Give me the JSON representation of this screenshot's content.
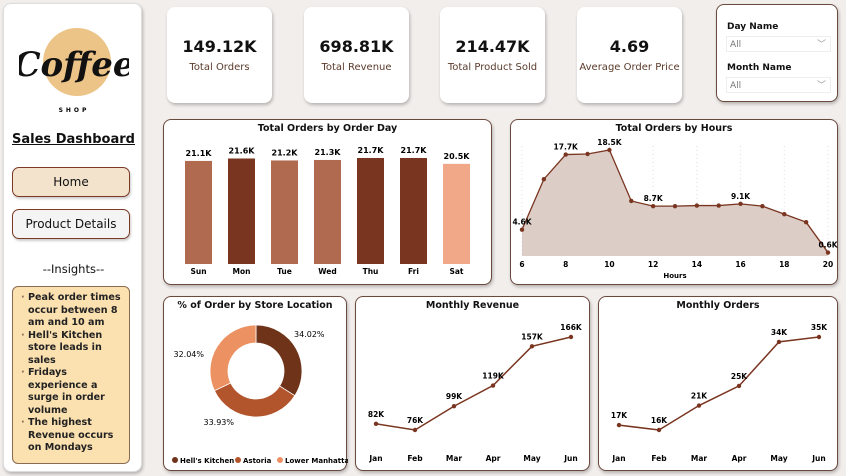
{
  "sidebar": {
    "logo_text": "Coffee",
    "logo_sub": "SHOP",
    "title": "Sales Dashboard",
    "nav": [
      {
        "label": "Home",
        "active": true
      },
      {
        "label": "Product Details",
        "active": false
      }
    ],
    "insights_title": "--Insights--",
    "insights": [
      "Peak order times occur between 8 am and 10 am",
      "Hell's Kitchen store leads in sales",
      "Fridays experience a surge in order volume",
      "The highest Revenue occurs on Mondays"
    ]
  },
  "kpis": [
    {
      "value": "149.12K",
      "label": "Total Orders"
    },
    {
      "value": "698.81K",
      "label": "Total Revenue"
    },
    {
      "value": "214.47K",
      "label": "Total Product Sold"
    },
    {
      "value": "4.69",
      "label": "Average Order Price"
    }
  ],
  "slicers": [
    {
      "label": "Day Name",
      "value": "All"
    },
    {
      "label": "Month Name",
      "value": "All"
    }
  ],
  "colors": {
    "dark": "#7a3520",
    "medium": "#b06a4f",
    "light": "#f0a888",
    "line": "#7a3520",
    "area": "#dccdc6"
  },
  "chart_data": [
    {
      "type": "bar",
      "title": "Total Orders by Order Day",
      "categories": [
        "Sun",
        "Mon",
        "Tue",
        "Wed",
        "Thu",
        "Fri",
        "Sat"
      ],
      "values": [
        21.1,
        21.6,
        21.2,
        21.3,
        21.7,
        21.7,
        20.5
      ],
      "labels": [
        "21.1K",
        "21.6K",
        "21.2K",
        "21.3K",
        "21.7K",
        "21.7K",
        "20.5K"
      ],
      "bar_colors": [
        "#b06a4f",
        "#7a3520",
        "#b06a4f",
        "#b06a4f",
        "#7a3520",
        "#7a3520",
        "#f0a888"
      ],
      "unit": "K"
    },
    {
      "type": "area",
      "title": "Total Orders by Hours",
      "xlabel": "Hours",
      "x": [
        6,
        7,
        8,
        9,
        10,
        11,
        12,
        13,
        14,
        15,
        16,
        17,
        18,
        19,
        20
      ],
      "values": [
        4.6,
        13.4,
        17.7,
        17.8,
        18.5,
        9.6,
        8.7,
        8.7,
        8.8,
        8.8,
        9.1,
        8.7,
        7.3,
        5.9,
        0.6
      ],
      "labels": {
        "6": "4.6K",
        "8": "17.7K",
        "10": "18.5K",
        "12": "8.7K",
        "16": "9.1K",
        "20": "0.6K"
      },
      "xticks": [
        6,
        8,
        10,
        12,
        14,
        16,
        18,
        20
      ]
    },
    {
      "type": "pie",
      "title": "% of Order by Store Location",
      "categories": [
        "Hell's Kitchen",
        "Astoria",
        "Lower Manhattan"
      ],
      "values": [
        34.02,
        33.93,
        32.04
      ],
      "labels": [
        "34.02%",
        "33.93%",
        "32.04%"
      ],
      "colors": [
        "#6e3319",
        "#b2552c",
        "#ec9262"
      ],
      "legend": "bottom"
    },
    {
      "type": "line",
      "title": "Monthly Revenue",
      "categories": [
        "Jan",
        "Feb",
        "Mar",
        "Apr",
        "May",
        "Jun"
      ],
      "values": [
        82,
        76,
        99,
        119,
        157,
        166
      ],
      "labels": [
        "82K",
        "76K",
        "99K",
        "119K",
        "157K",
        "166K"
      ]
    },
    {
      "type": "line",
      "title": "Monthly Orders",
      "categories": [
        "Jan",
        "Feb",
        "Mar",
        "Apr",
        "May",
        "Jun"
      ],
      "values": [
        17,
        16,
        21,
        25,
        34,
        35
      ],
      "labels": [
        "17K",
        "16K",
        "21K",
        "25K",
        "34K",
        "35K"
      ]
    }
  ]
}
